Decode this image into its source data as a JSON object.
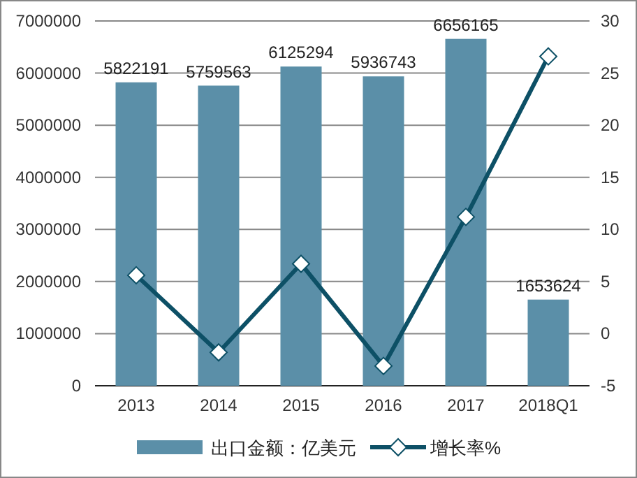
{
  "chart_data": {
    "type": "bar",
    "categories": [
      "2013",
      "2014",
      "2015",
      "2016",
      "2017",
      "2018Q1"
    ],
    "series": [
      {
        "name": "出口金额：亿美元",
        "color": "#5b8fa8",
        "values": [
          5822191,
          5759563,
          6125294,
          5936743,
          6656165,
          1653624
        ],
        "value_labels": [
          "5822191",
          "5759563",
          "6125294",
          "5936743",
          "6656165",
          "1653624"
        ]
      },
      {
        "name": "增长率%",
        "type": "line",
        "axis": "y2",
        "color": "#0d5066",
        "marker": "diamond",
        "values": [
          5.6,
          -1.8,
          6.7,
          -3.1,
          11.2,
          26.6
        ]
      }
    ],
    "ylim": [
      0,
      7000000
    ],
    "yticks": [
      0,
      1000000,
      2000000,
      3000000,
      4000000,
      5000000,
      6000000,
      7000000
    ],
    "y2lim": [
      -5,
      30
    ],
    "y2ticks": [
      -5,
      0,
      5,
      10,
      15,
      20,
      25,
      30
    ],
    "grid": "y",
    "legend": "bottom"
  }
}
